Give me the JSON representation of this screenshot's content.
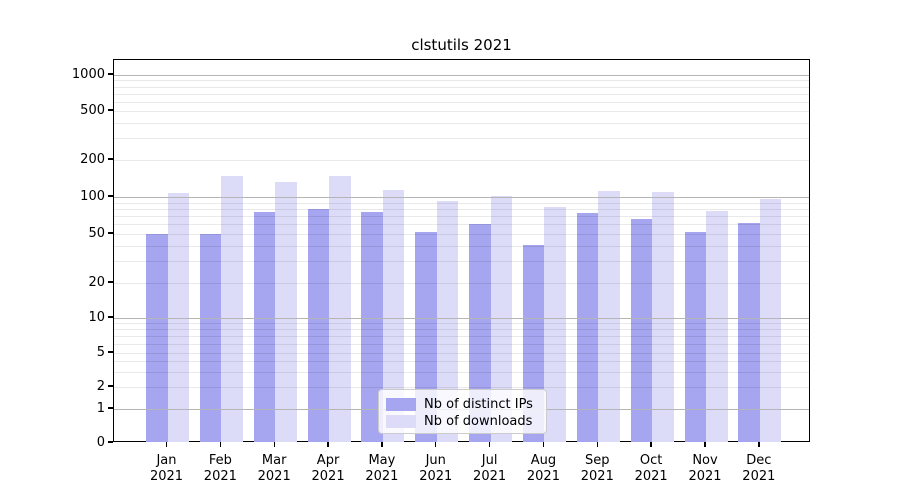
{
  "title": "clstutils 2021",
  "legend": {
    "items": [
      {
        "label": "Nb of distinct IPs",
        "color": "#a5a5f0"
      },
      {
        "label": "Nb of downloads",
        "color": "#dcdcf8"
      }
    ]
  },
  "chart_data": {
    "type": "bar",
    "title": "clstutils 2021",
    "categories": [
      "Jan 2021",
      "Feb 2021",
      "Mar 2021",
      "Apr 2021",
      "May 2021",
      "Jun 2021",
      "Jul 2021",
      "Aug 2021",
      "Sep 2021",
      "Oct 2021",
      "Nov 2021",
      "Dec 2021"
    ],
    "x_tick_line1": [
      "Jan",
      "Feb",
      "Mar",
      "Apr",
      "May",
      "Jun",
      "Jul",
      "Aug",
      "Sep",
      "Oct",
      "Nov",
      "Dec"
    ],
    "x_tick_line2": "2021",
    "series": [
      {
        "name": "Nb of distinct IPs",
        "color": "#a5a5f0",
        "values": [
          50,
          50,
          75,
          80,
          75,
          52,
          60,
          41,
          74,
          66,
          52,
          61
        ]
      },
      {
        "name": "Nb of downloads",
        "color": "#dcdcf8",
        "values": [
          107,
          149,
          133,
          149,
          115,
          92,
          102,
          83,
          112,
          110,
          77,
          97
        ]
      }
    ],
    "xlabel": "",
    "ylabel": "",
    "y_scale": "symlog",
    "y_ticks": [
      0,
      1,
      2,
      5,
      10,
      20,
      50,
      100,
      200,
      500,
      1000
    ],
    "ylim": [
      0,
      1400
    ],
    "grid": true,
    "legend_position": "lower center"
  },
  "colors": {
    "major_grid": "#b5b5b5",
    "minor_grid": "rgba(0,0,0,0.085)",
    "axis": "#000000",
    "text": "#111111",
    "background": "#ffffff"
  }
}
